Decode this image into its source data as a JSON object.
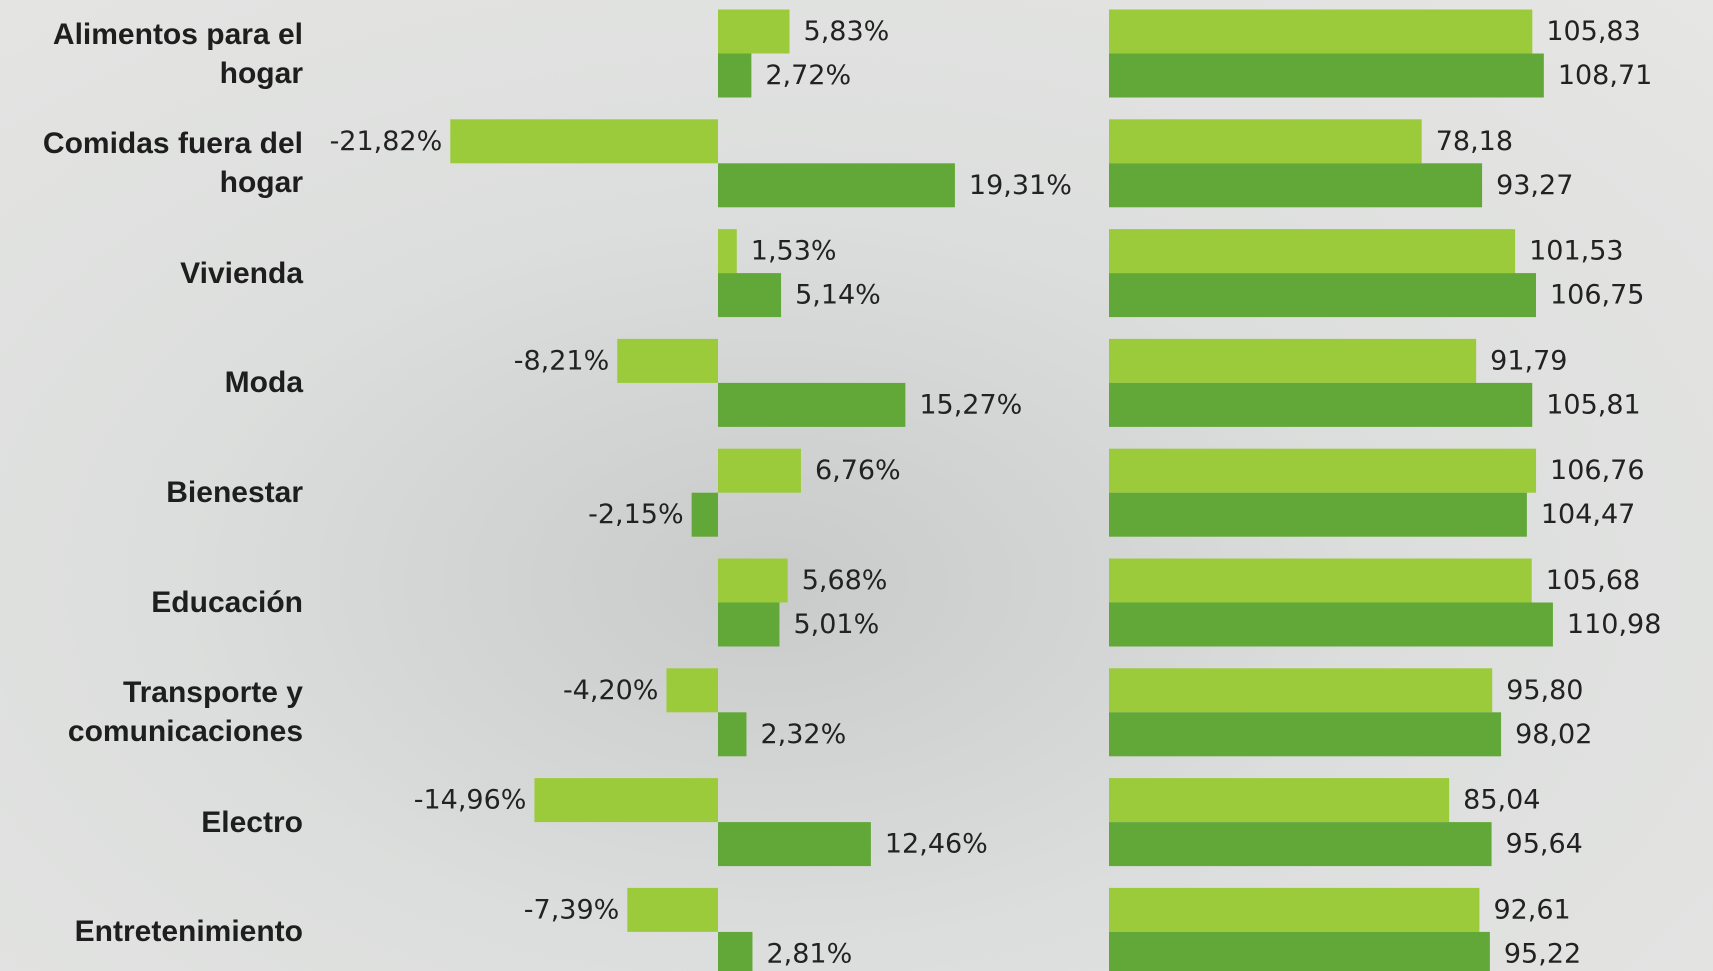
{
  "chart_data": [
    {
      "type": "bar",
      "orientation": "horizontal",
      "categories": [
        "Alimentos para el hogar",
        "Comidas fuera del hogar",
        "Vivienda",
        "Moda",
        "Bienestar",
        "Educación",
        "Transporte y comunicaciones",
        "Electro",
        "Entretenimiento"
      ],
      "series": [
        {
          "color": "#9bcb3b",
          "values": [
            5.83,
            -21.82,
            1.53,
            -8.21,
            6.76,
            5.68,
            -4.2,
            -14.96,
            -7.39
          ],
          "value_labels": [
            "5,83%",
            "-21,82%",
            "1,53%",
            "-8,21%",
            "6,76%",
            "5,68%",
            "-4,20%",
            "-14,96%",
            "-7,39%"
          ]
        },
        {
          "color": "#62a838",
          "values": [
            2.72,
            19.31,
            5.14,
            15.27,
            -2.15,
            5.01,
            2.32,
            12.46,
            2.81
          ],
          "value_labels": [
            "2,72%",
            "19,31%",
            "5,14%",
            "15,27%",
            "-2,15%",
            "5,01%",
            "2,32%",
            "12,46%",
            "2,81%"
          ]
        }
      ]
    },
    {
      "type": "bar",
      "orientation": "horizontal",
      "series": [
        {
          "color": "#9bcb3b",
          "values": [
            105.83,
            78.18,
            101.53,
            91.79,
            106.76,
            105.68,
            95.8,
            85.04,
            92.61
          ],
          "value_labels": [
            "105,83",
            "78,18",
            "101,53",
            "91,79",
            "106,76",
            "105,68",
            "95,80",
            "85,04",
            "92,61"
          ]
        },
        {
          "color": "#62a838",
          "values": [
            108.71,
            93.27,
            106.75,
            105.81,
            104.47,
            110.98,
            98.02,
            95.64,
            95.22
          ],
          "value_labels": [
            "108,71",
            "93,27",
            "106,75",
            "105,81",
            "104,47",
            "110,98",
            "98,02",
            "95,64",
            "95,22"
          ]
        }
      ]
    }
  ]
}
